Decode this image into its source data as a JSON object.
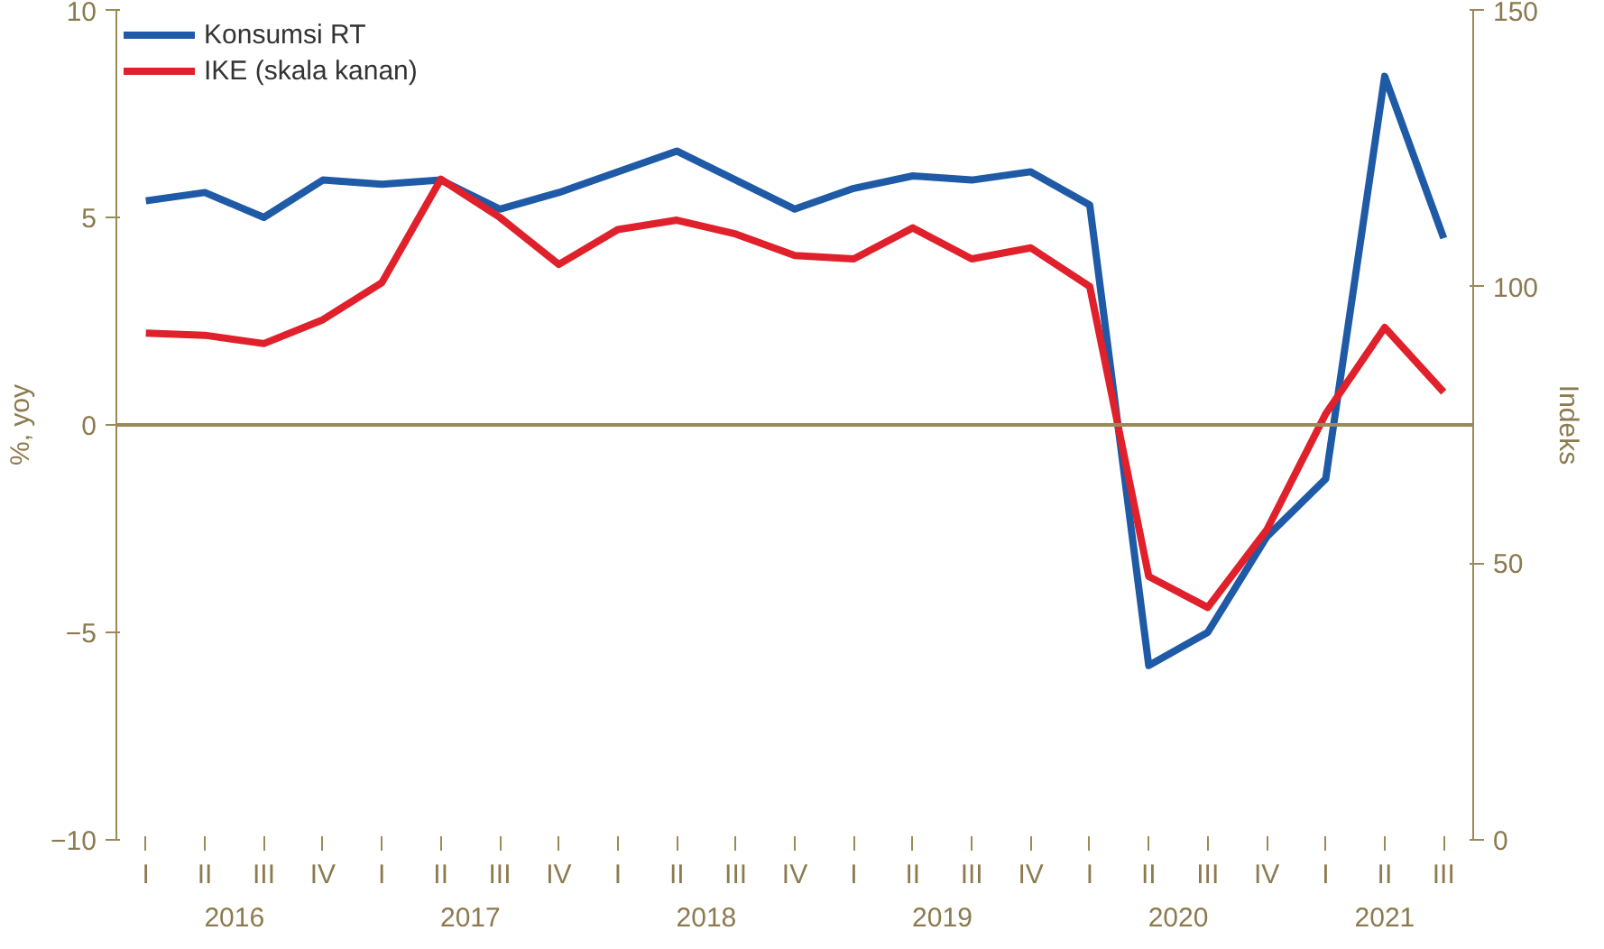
{
  "chart_data": {
    "type": "line",
    "categories": [
      "I",
      "II",
      "III",
      "IV",
      "I",
      "II",
      "III",
      "IV",
      "I",
      "II",
      "III",
      "IV",
      "I",
      "II",
      "III",
      "IV",
      "I",
      "II",
      "III",
      "IV",
      "I",
      "II",
      "III"
    ],
    "annotations": [
      "2016",
      "2017",
      "2018",
      "2019",
      "2020",
      "2021"
    ],
    "ylabel": "%, yoy",
    "y2label": "Indeks",
    "ylim": [
      -10,
      10
    ],
    "yticks": [
      -10,
      -5,
      0,
      5,
      10
    ],
    "y2lim": [
      0,
      150
    ],
    "y2ticks": [
      0,
      50,
      100,
      150
    ],
    "ref_lines": [
      {
        "axis": "y",
        "value": 0,
        "color": "#9b8a57"
      }
    ],
    "grid": false,
    "legend": "top left",
    "marker": "none",
    "line_style": "solid",
    "series": [
      {
        "name": "Konsumsi RT",
        "color": "#1f5aa6",
        "values": [
          5.4,
          5.6,
          5.0,
          5.9,
          5.8,
          5.9,
          5.2,
          5.6,
          6.1,
          6.6,
          5.9,
          5.2,
          5.7,
          6.0,
          5.9,
          6.1,
          5.3,
          -5.8,
          -5.0,
          -2.7,
          -1.3,
          8.4,
          4.5
        ]
      },
      {
        "name": "IKE (skala kanan)",
        "color": "#e0202a",
        "axis": "y2",
        "values": [
          91.6,
          91.2,
          89.7,
          94,
          100.7,
          119.4,
          112.5,
          104,
          110.3,
          112,
          109.5,
          105.6,
          105,
          110.6,
          105,
          107,
          100,
          47.6,
          42,
          56,
          77,
          92.6,
          80.9
        ]
      }
    ]
  }
}
